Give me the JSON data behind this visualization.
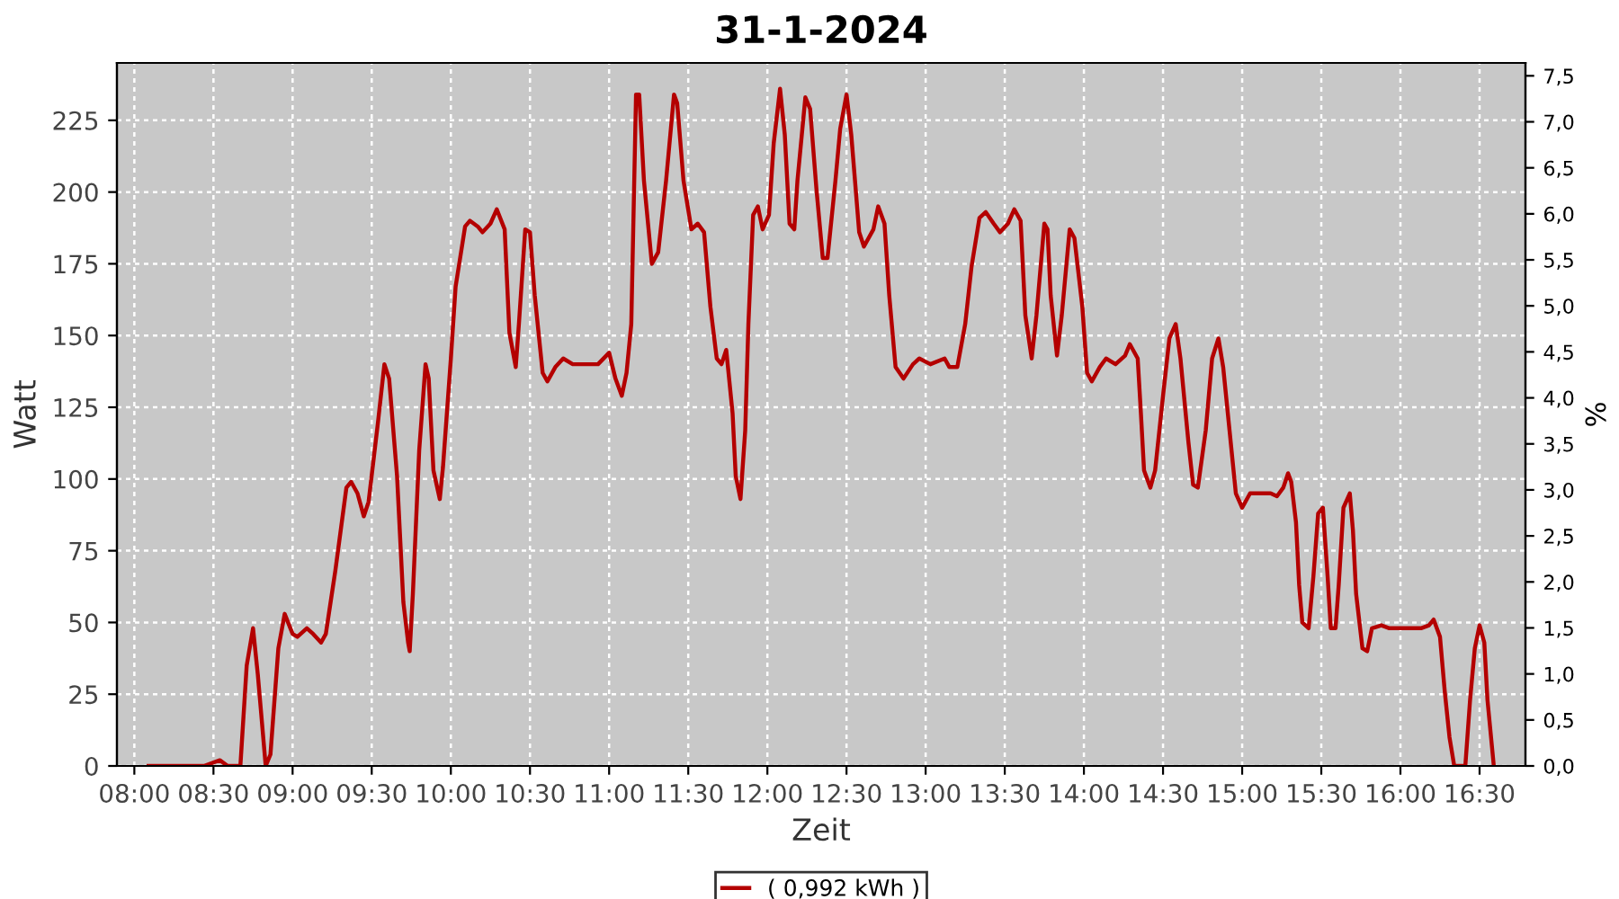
{
  "chart_data": {
    "type": "line",
    "title": "31-1-2024",
    "xlabel": "Zeit",
    "ylabel": "Watt",
    "y2label": "%",
    "xlim": [
      7.89,
      16.79
    ],
    "xticks": [
      {
        "value": 8,
        "label": "08:00"
      },
      {
        "value": 8.5,
        "label": "08:30"
      },
      {
        "value": 9,
        "label": "09:00"
      },
      {
        "value": 9.5,
        "label": "09:30"
      },
      {
        "value": 10,
        "label": "10:00"
      },
      {
        "value": 10.5,
        "label": "10:30"
      },
      {
        "value": 11,
        "label": "11:00"
      },
      {
        "value": 11.5,
        "label": "11:30"
      },
      {
        "value": 12,
        "label": "12:00"
      },
      {
        "value": 12.5,
        "label": "12:30"
      },
      {
        "value": 13,
        "label": "13:00"
      },
      {
        "value": 13.5,
        "label": "13:30"
      },
      {
        "value": 14,
        "label": "14:00"
      },
      {
        "value": 14.5,
        "label": "14:30"
      },
      {
        "value": 15,
        "label": "15:00"
      },
      {
        "value": 15.5,
        "label": "15:30"
      },
      {
        "value": 16,
        "label": "16:00"
      },
      {
        "value": 16.5,
        "label": "16:30"
      }
    ],
    "ylim": [
      0,
      245
    ],
    "yticks": [
      0,
      25,
      50,
      75,
      100,
      125,
      150,
      175,
      200,
      225
    ],
    "y2lim": [
      0,
      7.64
    ],
    "y2ticks": [
      {
        "value": 0,
        "label": "0,0"
      },
      {
        "value": 0.5,
        "label": "0,5"
      },
      {
        "value": 1,
        "label": "1,0"
      },
      {
        "value": 1.5,
        "label": "1,5"
      },
      {
        "value": 2,
        "label": "2,0"
      },
      {
        "value": 2.5,
        "label": "2,5"
      },
      {
        "value": 3,
        "label": "3,0"
      },
      {
        "value": 3.5,
        "label": "3,5"
      },
      {
        "value": 4,
        "label": "4,0"
      },
      {
        "value": 4.5,
        "label": "4,5"
      },
      {
        "value": 5,
        "label": "5,0"
      },
      {
        "value": 5.5,
        "label": "5,5"
      },
      {
        "value": 6,
        "label": "6,0"
      },
      {
        "value": 6.5,
        "label": "6,5"
      },
      {
        "value": 7,
        "label": "7,0"
      },
      {
        "value": 7.5,
        "label": "7,5"
      }
    ],
    "grid": true,
    "legend": "bottom",
    "marker": "none",
    "line_style": "solid",
    "series": [
      {
        "name": "( 0,992 kWh )",
        "color": "#b40000",
        "x": [
          8.09,
          8.44,
          8.54,
          8.59,
          8.67,
          8.71,
          8.75,
          8.78,
          8.83,
          8.86,
          8.91,
          8.95,
          9.0,
          9.03,
          9.09,
          9.13,
          9.18,
          9.21,
          9.27,
          9.34,
          9.37,
          9.41,
          9.45,
          9.48,
          9.54,
          9.58,
          9.61,
          9.66,
          9.7,
          9.73,
          9.74,
          9.76,
          9.8,
          9.84,
          9.86,
          9.89,
          9.93,
          9.95,
          10.0,
          10.03,
          10.09,
          10.12,
          10.17,
          10.2,
          10.25,
          10.29,
          10.34,
          10.37,
          10.41,
          10.43,
          10.47,
          10.5,
          10.53,
          10.58,
          10.61,
          10.66,
          10.71,
          10.77,
          10.85,
          10.93,
          11.0,
          11.04,
          11.08,
          11.11,
          11.14,
          11.17,
          11.19,
          11.22,
          11.27,
          11.31,
          11.36,
          11.41,
          11.43,
          11.47,
          11.52,
          11.56,
          11.6,
          11.64,
          11.68,
          11.71,
          11.74,
          11.78,
          11.8,
          11.83,
          11.86,
          11.88,
          11.91,
          11.94,
          11.97,
          12.01,
          12.04,
          12.08,
          12.11,
          12.14,
          12.17,
          12.19,
          12.24,
          12.27,
          12.31,
          12.35,
          12.38,
          12.43,
          12.46,
          12.5,
          12.53,
          12.58,
          12.61,
          12.67,
          12.7,
          12.74,
          12.77,
          12.81,
          12.86,
          12.92,
          12.96,
          13.03,
          13.12,
          13.15,
          13.2,
          13.25,
          13.29,
          13.34,
          13.38,
          13.43,
          13.47,
          13.52,
          13.56,
          13.6,
          13.63,
          13.67,
          13.7,
          13.75,
          13.77,
          13.79,
          13.83,
          13.86,
          13.91,
          13.94,
          13.99,
          14.02,
          14.05,
          14.1,
          14.14,
          14.2,
          14.26,
          14.29,
          14.34,
          14.36,
          14.38,
          14.42,
          14.45,
          14.5,
          14.54,
          14.58,
          14.61,
          14.66,
          14.69,
          14.72,
          14.77,
          14.81,
          14.85,
          14.88,
          14.92,
          14.96,
          15.0,
          15.05,
          15.11,
          15.18,
          15.22,
          15.26,
          15.29,
          15.31,
          15.34,
          15.36,
          15.38,
          15.42,
          15.45,
          15.48,
          15.51,
          15.54,
          15.56,
          15.59,
          15.61,
          15.64,
          15.68,
          15.7,
          15.72,
          15.76,
          15.79,
          15.82,
          15.88,
          15.93,
          16.02,
          16.13,
          16.18,
          16.21,
          16.25,
          16.28,
          16.31,
          16.34,
          16.41,
          16.44,
          16.47,
          16.5,
          16.53,
          16.55,
          16.59
        ],
        "values": [
          0,
          0,
          2,
          0,
          0,
          35,
          48,
          32,
          0,
          4,
          41,
          53,
          46,
          45,
          48,
          46,
          43,
          46,
          68,
          97,
          99,
          95,
          87,
          92,
          120,
          140,
          135,
          101,
          57,
          43,
          40,
          60,
          110,
          140,
          135,
          103,
          93,
          104,
          142,
          167,
          188,
          190,
          188,
          186,
          189,
          194,
          187,
          151,
          139,
          154,
          187,
          186,
          164,
          137,
          134,
          139,
          142,
          140,
          140,
          140,
          144,
          135,
          129,
          137,
          154,
          234,
          234,
          204,
          175,
          179,
          204,
          234,
          231,
          204,
          187,
          189,
          186,
          160,
          142,
          140,
          145,
          123,
          101,
          93,
          117,
          154,
          192,
          195,
          187,
          192,
          217,
          236,
          220,
          189,
          187,
          204,
          233,
          229,
          201,
          177,
          177,
          204,
          222,
          234,
          220,
          186,
          181,
          187,
          195,
          189,
          164,
          139,
          135,
          140,
          142,
          140,
          142,
          139,
          139,
          154,
          174,
          191,
          193,
          189,
          186,
          189,
          194,
          190,
          157,
          142,
          157,
          189,
          187,
          164,
          143,
          157,
          187,
          184,
          160,
          137,
          134,
          139,
          142,
          140,
          143,
          147,
          142,
          123,
          103,
          97,
          103,
          129,
          149,
          154,
          142,
          113,
          98,
          97,
          117,
          142,
          149,
          139,
          117,
          95,
          90,
          95,
          95,
          95,
          94,
          97,
          102,
          99,
          85,
          63,
          50,
          48,
          66,
          88,
          90,
          66,
          48,
          48,
          63,
          90,
          95,
          82,
          60,
          41,
          40,
          48,
          49,
          48,
          48,
          48,
          49,
          51,
          45,
          26,
          10,
          0,
          0,
          23,
          41,
          49,
          43,
          23,
          0
        ]
      }
    ]
  }
}
